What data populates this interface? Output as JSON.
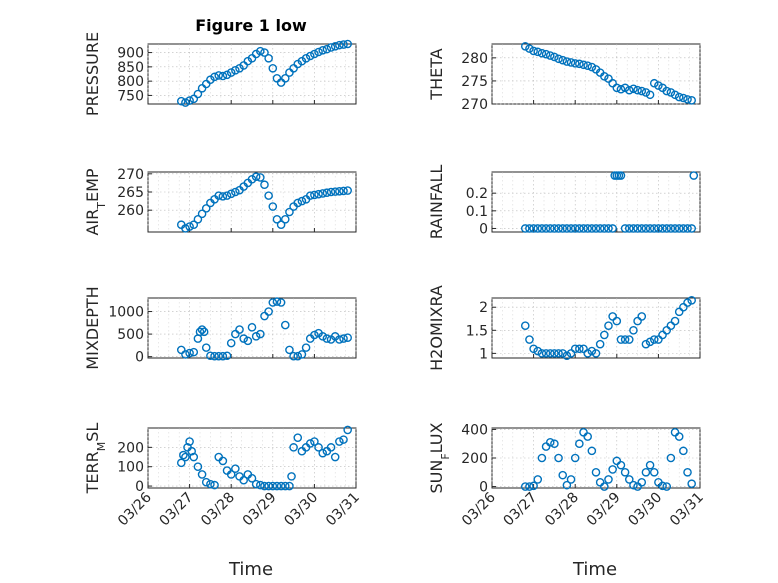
{
  "figure": {
    "title": "Figure 1 low",
    "marker_color": "#0072bd",
    "x_tick_labels": [
      "03/26",
      "03/27",
      "03/28",
      "03/29",
      "03/30",
      "03/31"
    ],
    "x_axis_label": "Time"
  },
  "chart_data": [
    {
      "type": "scatter",
      "ylabel": "PRESSURE",
      "xlim": [
        0,
        5
      ],
      "ylim": [
        720,
        930
      ],
      "yticks": [
        750,
        800,
        850,
        900
      ],
      "title": "Figure 1 low",
      "series": [
        {
          "x": [
            0.8,
            0.9,
            1.0,
            1.1,
            1.2,
            1.3,
            1.4,
            1.5,
            1.6,
            1.7,
            1.8,
            1.9,
            2.0,
            2.1,
            2.2,
            2.3,
            2.4,
            2.5,
            2.6,
            2.7,
            2.8,
            2.9,
            3.0,
            3.1,
            3.2,
            3.3,
            3.4,
            3.5,
            3.6,
            3.7,
            3.8,
            3.9,
            4.0,
            4.1,
            4.2,
            4.3,
            4.4,
            4.5,
            4.6,
            4.7,
            4.8
          ],
          "y": [
            730,
            725,
            732,
            738,
            755,
            775,
            790,
            805,
            815,
            820,
            818,
            822,
            830,
            838,
            845,
            855,
            870,
            880,
            895,
            905,
            900,
            880,
            845,
            810,
            795,
            810,
            830,
            845,
            860,
            870,
            880,
            888,
            895,
            902,
            908,
            912,
            918,
            922,
            926,
            928,
            930
          ]
        }
      ]
    },
    {
      "type": "scatter",
      "ylabel": "THETA",
      "xlim": [
        0,
        5
      ],
      "ylim": [
        270,
        283
      ],
      "yticks": [
        270,
        275,
        280
      ],
      "series": [
        {
          "x": [
            0.8,
            0.9,
            1.0,
            1.1,
            1.2,
            1.3,
            1.4,
            1.5,
            1.6,
            1.7,
            1.8,
            1.9,
            2.0,
            2.1,
            2.2,
            2.3,
            2.4,
            2.5,
            2.6,
            2.7,
            2.8,
            2.9,
            3.0,
            3.1,
            3.2,
            3.3,
            3.4,
            3.5,
            3.6,
            3.7,
            3.8,
            3.9,
            4.0,
            4.1,
            4.2,
            4.3,
            4.4,
            4.5,
            4.6,
            4.7,
            4.8
          ],
          "y": [
            282.5,
            282,
            281.5,
            281.3,
            281,
            280.8,
            280.5,
            280.2,
            279.8,
            279.5,
            279.2,
            279,
            278.8,
            278.7,
            278.5,
            278.3,
            278,
            277.5,
            276.8,
            276,
            275.5,
            274.5,
            273.5,
            273.2,
            273.5,
            273,
            273.3,
            273,
            272.8,
            272.5,
            272,
            274.5,
            274,
            273.5,
            272.8,
            272.5,
            272,
            271.5,
            271.3,
            271,
            270.8
          ]
        }
      ]
    },
    {
      "type": "scatter",
      "ylabel": "AIR_TEMP",
      "xlim": [
        0,
        5
      ],
      "ylim": [
        254,
        270.5
      ],
      "yticks": [
        260,
        265,
        270
      ],
      "series": [
        {
          "x": [
            0.8,
            0.9,
            1.0,
            1.1,
            1.2,
            1.3,
            1.4,
            1.5,
            1.6,
            1.7,
            1.8,
            1.9,
            2.0,
            2.1,
            2.2,
            2.3,
            2.4,
            2.5,
            2.6,
            2.7,
            2.8,
            2.9,
            3.0,
            3.1,
            3.2,
            3.3,
            3.4,
            3.5,
            3.6,
            3.7,
            3.8,
            3.9,
            4.0,
            4.1,
            4.2,
            4.3,
            4.4,
            4.5,
            4.6,
            4.7,
            4.8
          ],
          "y": [
            256,
            255,
            255.5,
            256,
            257.5,
            259,
            260.5,
            262,
            263,
            264,
            263.8,
            264,
            264.5,
            265,
            265.5,
            266.5,
            267.5,
            268.5,
            269.2,
            269,
            267,
            264,
            261,
            257.5,
            256,
            257.5,
            259.5,
            261,
            262,
            262.5,
            263,
            264,
            264.2,
            264.4,
            264.6,
            264.8,
            265,
            265.1,
            265.2,
            265.3,
            265.4
          ]
        }
      ]
    },
    {
      "type": "scatter",
      "ylabel": "RAINFALL",
      "xlim": [
        0,
        5
      ],
      "ylim": [
        -0.02,
        0.32
      ],
      "yticks": [
        0,
        0.1,
        0.2
      ],
      "series": [
        {
          "x": [
            0.8,
            0.9,
            1.0,
            1.1,
            1.2,
            1.3,
            1.4,
            1.5,
            1.6,
            1.7,
            1.8,
            1.9,
            2.0,
            2.1,
            2.2,
            2.3,
            2.4,
            2.5,
            2.6,
            2.7,
            2.8,
            2.9,
            2.95,
            3.0,
            3.05,
            3.1,
            3.2,
            3.3,
            3.4,
            3.5,
            3.6,
            3.7,
            3.8,
            3.9,
            4.0,
            4.1,
            4.2,
            4.3,
            4.4,
            4.5,
            4.6,
            4.7,
            4.8,
            4.85
          ],
          "y": [
            0,
            0,
            0,
            0,
            0,
            0,
            0,
            0,
            0,
            0,
            0,
            0,
            0,
            0,
            0,
            0,
            0,
            0,
            0,
            0,
            0,
            0,
            0.3,
            0.3,
            0.3,
            0.3,
            0,
            0,
            0,
            0,
            0,
            0,
            0,
            0,
            0,
            0,
            0,
            0,
            0,
            0,
            0,
            0,
            0,
            0.3
          ]
        }
      ]
    },
    {
      "type": "scatter",
      "ylabel": "MIXDEPTH",
      "xlim": [
        0,
        5
      ],
      "ylim": [
        -30,
        1300
      ],
      "yticks": [
        0,
        500,
        1000
      ],
      "series": [
        {
          "x": [
            0.8,
            0.9,
            1.0,
            1.1,
            1.2,
            1.25,
            1.3,
            1.35,
            1.4,
            1.5,
            1.6,
            1.7,
            1.8,
            1.9,
            2.0,
            2.1,
            2.2,
            2.3,
            2.4,
            2.5,
            2.6,
            2.7,
            2.8,
            2.9,
            3.0,
            3.1,
            3.2,
            3.3,
            3.4,
            3.5,
            3.6,
            3.7,
            3.8,
            3.9,
            4.0,
            4.1,
            4.2,
            4.3,
            4.4,
            4.5,
            4.6,
            4.7,
            4.8
          ],
          "y": [
            150,
            50,
            80,
            100,
            400,
            550,
            600,
            550,
            200,
            20,
            10,
            10,
            10,
            20,
            300,
            500,
            600,
            400,
            350,
            650,
            450,
            500,
            900,
            1000,
            1200,
            1220,
            1200,
            700,
            150,
            10,
            10,
            50,
            200,
            400,
            480,
            520,
            450,
            400,
            380,
            450,
            380,
            400,
            420
          ]
        }
      ]
    },
    {
      "type": "scatter",
      "ylabel": "H2OMIXRA",
      "xlim": [
        0,
        5
      ],
      "ylim": [
        0.9,
        2.2
      ],
      "yticks": [
        1,
        1.5,
        2
      ],
      "series": [
        {
          "x": [
            0.8,
            0.9,
            1.0,
            1.1,
            1.2,
            1.3,
            1.4,
            1.5,
            1.6,
            1.7,
            1.8,
            1.9,
            2.0,
            2.1,
            2.2,
            2.3,
            2.4,
            2.5,
            2.6,
            2.7,
            2.8,
            2.9,
            3.0,
            3.1,
            3.2,
            3.3,
            3.4,
            3.5,
            3.6,
            3.7,
            3.8,
            3.9,
            4.0,
            4.1,
            4.2,
            4.3,
            4.4,
            4.5,
            4.6,
            4.7,
            4.8
          ],
          "y": [
            1.6,
            1.3,
            1.1,
            1.05,
            1.0,
            1.0,
            1.0,
            1.0,
            1.0,
            1.0,
            0.95,
            1.0,
            1.1,
            1.1,
            1.1,
            1.0,
            1.05,
            1.0,
            1.2,
            1.4,
            1.6,
            1.8,
            1.7,
            1.3,
            1.3,
            1.3,
            1.5,
            1.7,
            1.8,
            1.2,
            1.25,
            1.3,
            1.3,
            1.4,
            1.5,
            1.6,
            1.7,
            1.9,
            2.0,
            2.1,
            2.15
          ]
        }
      ]
    },
    {
      "type": "scatter",
      "ylabel": "TERR_MSL",
      "xlim": [
        0,
        5
      ],
      "ylim": [
        -10,
        300
      ],
      "yticks": [
        0,
        100,
        200
      ],
      "series": [
        {
          "x": [
            0.8,
            0.85,
            0.9,
            0.95,
            1.0,
            1.05,
            1.1,
            1.2,
            1.3,
            1.4,
            1.5,
            1.6,
            1.7,
            1.8,
            1.9,
            2.0,
            2.1,
            2.2,
            2.3,
            2.4,
            2.5,
            2.6,
            2.7,
            2.8,
            2.9,
            3.0,
            3.1,
            3.2,
            3.3,
            3.4,
            3.45,
            3.5,
            3.6,
            3.7,
            3.8,
            3.9,
            4.0,
            4.1,
            4.2,
            4.3,
            4.4,
            4.5,
            4.6,
            4.7,
            4.8
          ],
          "y": [
            120,
            160,
            150,
            200,
            230,
            180,
            150,
            100,
            60,
            20,
            10,
            5,
            150,
            130,
            80,
            60,
            90,
            50,
            30,
            60,
            40,
            10,
            5,
            0,
            0,
            0,
            0,
            0,
            0,
            0,
            50,
            200,
            250,
            180,
            200,
            220,
            230,
            200,
            170,
            180,
            200,
            150,
            230,
            240,
            290
          ]
        }
      ]
    },
    {
      "type": "scatter",
      "ylabel": "SUN_FLUX",
      "xlim": [
        0,
        5
      ],
      "ylim": [
        -10,
        410
      ],
      "yticks": [
        0,
        200,
        400
      ],
      "series": [
        {
          "x": [
            0.8,
            0.9,
            1.0,
            1.1,
            1.2,
            1.3,
            1.4,
            1.5,
            1.6,
            1.7,
            1.8,
            1.9,
            2.0,
            2.1,
            2.2,
            2.3,
            2.4,
            2.5,
            2.6,
            2.7,
            2.8,
            2.9,
            3.0,
            3.1,
            3.2,
            3.3,
            3.4,
            3.5,
            3.6,
            3.7,
            3.8,
            3.9,
            4.0,
            4.1,
            4.2,
            4.3,
            4.4,
            4.5,
            4.6,
            4.7,
            4.8
          ],
          "y": [
            0,
            0,
            5,
            50,
            200,
            280,
            310,
            300,
            200,
            80,
            10,
            50,
            200,
            300,
            380,
            350,
            250,
            100,
            30,
            0,
            50,
            120,
            180,
            150,
            100,
            50,
            10,
            0,
            30,
            100,
            150,
            100,
            30,
            5,
            0,
            200,
            380,
            350,
            250,
            100,
            20
          ]
        }
      ]
    }
  ]
}
